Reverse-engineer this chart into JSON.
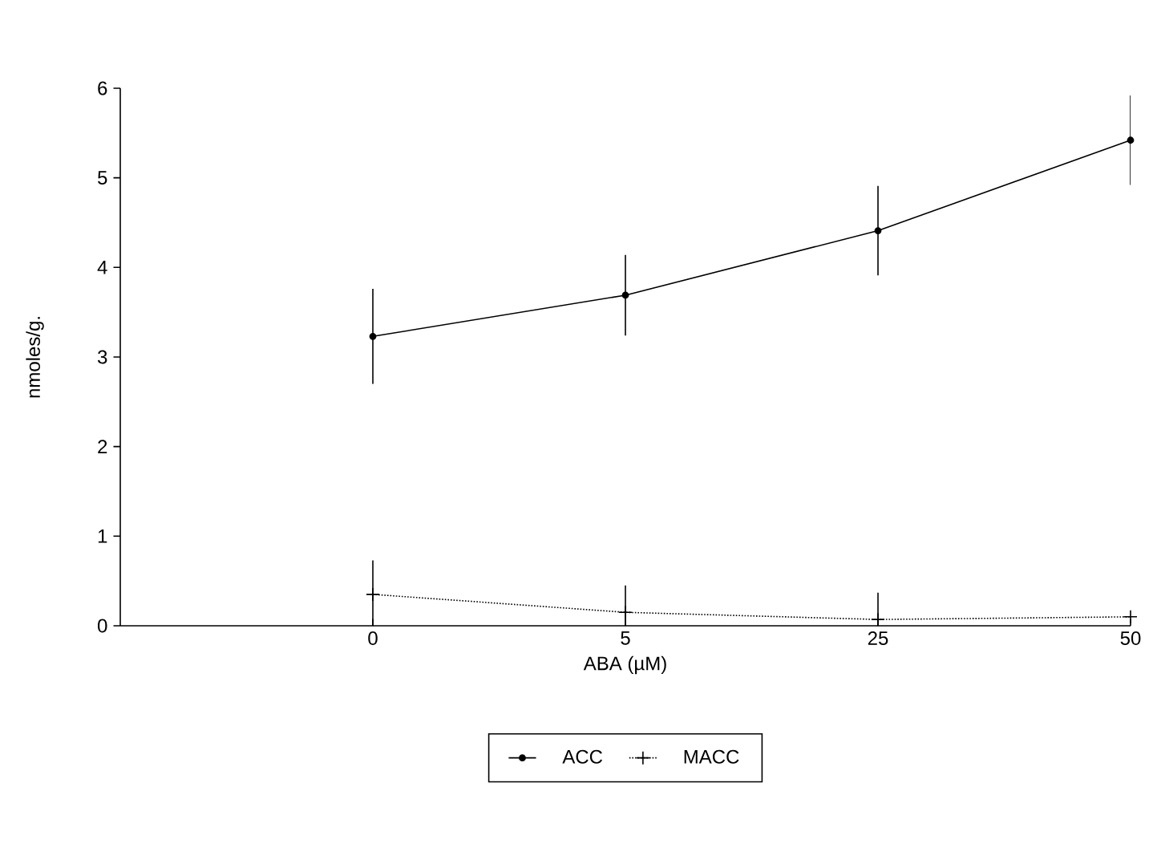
{
  "chart_data": {
    "type": "line",
    "xlabel": "ABA (µM)",
    "ylabel": "nmoles/g.",
    "categories": [
      "0",
      "5",
      "25",
      "50"
    ],
    "series": [
      {
        "name": "ACC",
        "color": "#000000",
        "marker": "circle",
        "line_style": "solid",
        "values": [
          3.23,
          3.69,
          4.41,
          5.42
        ],
        "errors": [
          0.53,
          0.45,
          0.5,
          0.5
        ]
      },
      {
        "name": "MACC",
        "color": "#000000",
        "marker": "cross",
        "line_style": "dotted",
        "values": [
          0.35,
          0.15,
          0.07,
          0.1
        ],
        "errors": [
          0.38,
          0.3,
          0.3,
          null
        ]
      }
    ],
    "ylim": [
      0,
      6
    ],
    "yticks": [
      0,
      1,
      2,
      3,
      4,
      5,
      6
    ],
    "legend": "bottom"
  }
}
